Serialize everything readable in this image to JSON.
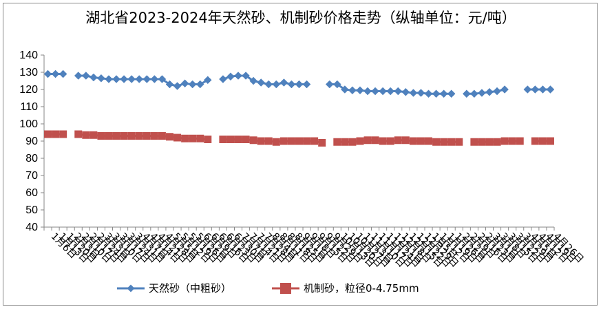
{
  "chart_data": {
    "type": "line",
    "title": "湖北省2023-2024年天然砂、机制砂价格走势（纵轴单位：元/吨）",
    "xlabel": "",
    "ylabel": "",
    "ylim": [
      40,
      140
    ],
    "yticks": [
      40,
      50,
      60,
      70,
      80,
      90,
      100,
      110,
      120,
      130,
      140
    ],
    "grid": false,
    "legend_position": "bottom",
    "categories": [
      "1月6日",
      "1月13日",
      "1月20日",
      "2月3日",
      "2月10日",
      "2月17日",
      "2月24日",
      "3月3日",
      "3月10日",
      "3月17日",
      "3月24日",
      "3月31日",
      "4月7日",
      "4月14日",
      "4月21日",
      "4月28日",
      "5月5日",
      "5月12日",
      "5月19日",
      "5月26日",
      "6月2日",
      "6月9日",
      "6月16日",
      "6月23日",
      "6月30日",
      "7月7日",
      "7月14日",
      "7月21日",
      "7月28日",
      "8月4日",
      "8月11日",
      "8月18日",
      "8月25日",
      "9月1日",
      "9月8日",
      "9月15日",
      "9月22日",
      "9月29日",
      "10月13日",
      "10月20日",
      "10月27日",
      "11月3日",
      "11月10日",
      "11月17日",
      "11月24日",
      "12月1日",
      "12月8日",
      "12月15日",
      "12月22日",
      "12月29日",
      "1月5日",
      "1月12日",
      "1月19日",
      "1月26日",
      "2月2日",
      "2月9日",
      "2月16日",
      "2月23日",
      "3月1日",
      "3月8日",
      "3月15日",
      "3月22日",
      "3月29日",
      "4月5日",
      "4月12日",
      "4月19日",
      "4月26日"
    ],
    "series": [
      {
        "name": "天然砂（中粗砂）",
        "color": "#4F81BD",
        "marker": "diamond",
        "values": [
          129,
          129,
          129,
          null,
          128,
          128,
          127,
          126.5,
          126,
          126,
          126,
          126,
          126,
          126,
          126,
          126,
          123,
          122,
          123.5,
          123,
          123,
          125.5,
          null,
          126,
          127.5,
          128,
          128,
          125,
          124,
          123,
          123,
          124,
          123,
          123,
          123,
          null,
          null,
          123,
          123,
          120,
          119.5,
          119.5,
          119,
          119,
          119,
          119,
          119,
          118.5,
          118,
          118,
          117.5,
          117.5,
          117.5,
          117.5,
          null,
          117.5,
          117.5,
          118,
          118.5,
          119,
          120,
          null,
          null,
          120,
          120,
          120,
          120
        ]
      },
      {
        "name": "机制砂，粒径0-4.75mm",
        "color": "#C0504D",
        "marker": "square",
        "values": [
          94,
          94,
          94,
          null,
          94,
          93.5,
          93.5,
          93,
          93,
          93,
          93,
          93,
          93,
          93,
          93,
          93,
          92.5,
          92,
          91.5,
          91.5,
          91.5,
          91,
          null,
          91,
          91,
          91,
          91,
          90.5,
          90,
          90,
          89.5,
          90,
          90,
          90,
          90,
          90,
          89,
          null,
          89.5,
          89.5,
          89.5,
          90,
          90.5,
          90.5,
          90,
          90,
          90.5,
          90.5,
          90,
          90,
          90,
          89.5,
          89.5,
          89.5,
          89.5,
          null,
          89.5,
          89.5,
          89.5,
          89.5,
          90,
          90,
          90,
          null,
          90,
          90,
          90
        ]
      }
    ]
  }
}
